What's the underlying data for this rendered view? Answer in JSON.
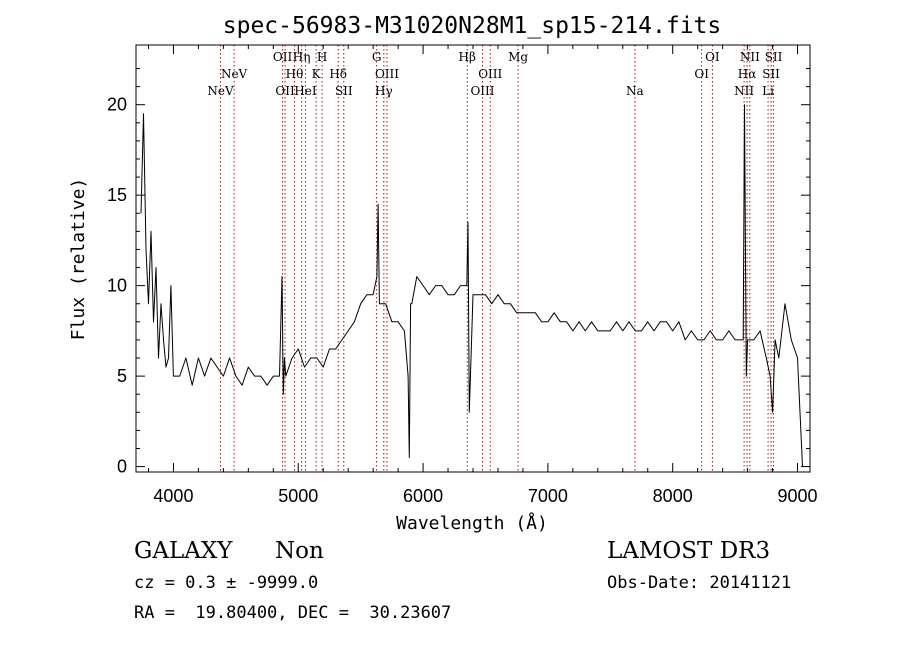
{
  "chart_data": {
    "type": "line",
    "title": "spec-56983-M31020N28M1_sp15-214.fits",
    "xlabel": "Wavelength (Å)",
    "ylabel": "Flux (relative)",
    "xlim": [
      3700,
      9100
    ],
    "ylim": [
      -0.3,
      23.3
    ],
    "xticks": [
      4000,
      5000,
      6000,
      7000,
      8000,
      9000
    ],
    "yticks": [
      0,
      5,
      10,
      15,
      20
    ],
    "xtick_labels": [
      "4000",
      "5000",
      "6000",
      "7000",
      "8000",
      "9000"
    ],
    "ytick_labels": [
      "0",
      "5",
      "10",
      "15",
      "20"
    ],
    "series": [
      {
        "name": "flux",
        "color": "#000000",
        "x": [
          3740,
          3760,
          3780,
          3800,
          3820,
          3840,
          3860,
          3880,
          3900,
          3920,
          3940,
          3960,
          3980,
          4000,
          4050,
          4100,
          4150,
          4200,
          4250,
          4300,
          4350,
          4400,
          4450,
          4500,
          4550,
          4600,
          4650,
          4700,
          4750,
          4800,
          4850,
          4870,
          4880,
          4890,
          4900,
          4950,
          5000,
          5050,
          5100,
          5150,
          5200,
          5250,
          5300,
          5350,
          5400,
          5450,
          5500,
          5550,
          5600,
          5630,
          5640,
          5650,
          5700,
          5750,
          5800,
          5850,
          5880,
          5890,
          5900,
          5910,
          5950,
          6000,
          6050,
          6100,
          6150,
          6200,
          6250,
          6300,
          6350,
          6360,
          6370,
          6400,
          6450,
          6500,
          6550,
          6600,
          6650,
          6700,
          6750,
          6800,
          6850,
          6900,
          6950,
          7000,
          7050,
          7100,
          7150,
          7200,
          7250,
          7300,
          7350,
          7400,
          7450,
          7500,
          7550,
          7600,
          7650,
          7700,
          7750,
          7800,
          7850,
          7900,
          7950,
          8000,
          8050,
          8100,
          8150,
          8200,
          8250,
          8300,
          8350,
          8400,
          8450,
          8500,
          8550,
          8565,
          8575,
          8590,
          8600,
          8650,
          8700,
          8750,
          8780,
          8800,
          8820,
          8850,
          8900,
          8950,
          9000,
          9020,
          9040
        ],
        "y": [
          14,
          19.5,
          12,
          9,
          13,
          8,
          11,
          6,
          9,
          7,
          5.5,
          6,
          10,
          5,
          5,
          6,
          4.5,
          6,
          5,
          6,
          5.5,
          5,
          6,
          5,
          4.5,
          5.5,
          5,
          5,
          4.5,
          5,
          5,
          10.5,
          4,
          6,
          5,
          6,
          6.5,
          5.5,
          6,
          6,
          5.5,
          6.5,
          6.5,
          7,
          7.5,
          8,
          9,
          9.5,
          9.5,
          10.5,
          14.5,
          9,
          9,
          8,
          8,
          7.5,
          5,
          0.5,
          9,
          9,
          10.5,
          10,
          9.5,
          10,
          10,
          9.5,
          9.5,
          10,
          10,
          13.5,
          3,
          9.5,
          9.5,
          9.5,
          9,
          9.5,
          9,
          9,
          8.5,
          8.5,
          8.5,
          8.5,
          8,
          8,
          8.5,
          8,
          8,
          7.5,
          8,
          7.5,
          8,
          7.5,
          7.5,
          7.5,
          8,
          7.5,
          8,
          7.5,
          7.5,
          8,
          7.5,
          8,
          8,
          7.5,
          8,
          7,
          7.5,
          7,
          7,
          7.5,
          7,
          7,
          7.5,
          7,
          7,
          7,
          20,
          5,
          7,
          7,
          7.5,
          6,
          5,
          3,
          7,
          6,
          9,
          7,
          6,
          3,
          0
        ]
      }
    ],
    "lines": [
      {
        "x": 4377,
        "labels": [
          "NeV"
        ]
      },
      {
        "x": 4486,
        "labels": [
          "NeV"
        ]
      },
      {
        "x": 4874,
        "labels": [
          "OII"
        ]
      },
      {
        "x": 4894,
        "labels": [
          "OII"
        ]
      },
      {
        "x": 4970,
        "labels": [
          "Hθ"
        ]
      },
      {
        "x": 5027,
        "labels": [
          "Hη"
        ]
      },
      {
        "x": 5058,
        "labels": [
          "HeI"
        ]
      },
      {
        "x": 5143,
        "labels": [
          "K"
        ]
      },
      {
        "x": 5191,
        "labels": [
          "H"
        ]
      },
      {
        "x": 5320,
        "labels": [
          "Hδ"
        ]
      },
      {
        "x": 5365,
        "labels": [
          "SII"
        ]
      },
      {
        "x": 5628,
        "labels": [
          "G"
        ]
      },
      {
        "x": 5686,
        "labels": [
          "Hγ"
        ]
      },
      {
        "x": 5711,
        "labels": [
          "OIII"
        ]
      },
      {
        "x": 6354,
        "labels": [
          "Hβ"
        ]
      },
      {
        "x": 6476,
        "labels": [
          "OIII"
        ]
      },
      {
        "x": 6538,
        "labels": [
          "OIII"
        ]
      },
      {
        "x": 6761,
        "labels": [
          "Mg"
        ]
      },
      {
        "x": 7697,
        "labels": [
          "Na"
        ]
      },
      {
        "x": 8232,
        "labels": [
          "OI"
        ]
      },
      {
        "x": 8318,
        "labels": [
          "OI"
        ]
      },
      {
        "x": 8572,
        "labels": [
          "NII"
        ]
      },
      {
        "x": 8596,
        "labels": [
          "Hα"
        ]
      },
      {
        "x": 8618,
        "labels": [
          "NII"
        ]
      },
      {
        "x": 8764,
        "labels": [
          "Li"
        ]
      },
      {
        "x": 8788,
        "labels": [
          "SII"
        ]
      },
      {
        "x": 8808,
        "labels": [
          "SII"
        ]
      }
    ],
    "line_label_rows": [
      {
        "row": 0,
        "items": [
          [
            "OII",
            4874
          ],
          [
            "Hη",
            5027
          ],
          [
            "H",
            5191
          ],
          [
            "G",
            5628
          ],
          [
            "Hβ",
            6354
          ],
          [
            "Mg",
            6761
          ],
          [
            "OI",
            8318
          ],
          [
            "NII",
            8618
          ],
          [
            "SII",
            8808
          ]
        ]
      },
      {
        "row": 1,
        "items": [
          [
            "NeV",
            4486
          ],
          [
            "Hθ",
            4970
          ],
          [
            "K",
            5143
          ],
          [
            "Hδ",
            5320
          ],
          [
            "OIII",
            5711
          ],
          [
            "OIII",
            6538
          ],
          [
            "OI",
            8232
          ],
          [
            "Hα",
            8596
          ],
          [
            "SII",
            8788
          ]
        ]
      },
      {
        "row": 2,
        "items": [
          [
            "NeV",
            4377
          ],
          [
            "OII",
            4894
          ],
          [
            "HeI",
            5058
          ],
          [
            "SII",
            5365
          ],
          [
            "Hγ",
            5686
          ],
          [
            "OIII",
            6476
          ],
          [
            "Na",
            7697
          ],
          [
            "NII",
            8572
          ],
          [
            "Li",
            8764
          ]
        ]
      }
    ]
  },
  "info": {
    "class": "GALAXY",
    "subclass": "Non",
    "survey": "LAMOST DR3",
    "cz": "cz = 0.3 ± -9999.0",
    "obs_date": "Obs-Date: 20141121",
    "radec": "RA =  19.80400, DEC =  30.23607"
  },
  "colors": {
    "spectrum": "#000000",
    "line_marker": "#cc0000",
    "axes": "#000000"
  }
}
